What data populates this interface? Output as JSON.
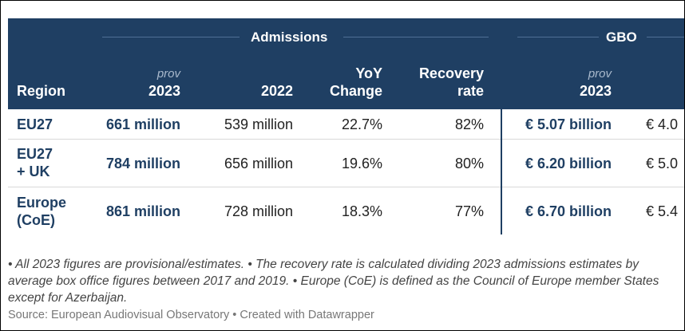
{
  "header": {
    "groups": [
      {
        "label": "Admissions"
      },
      {
        "label": "GBO"
      }
    ],
    "columns": {
      "region": "Region",
      "adm_2023_prov": "prov",
      "adm_2023": "2023",
      "adm_2022": "2022",
      "yoy_line1": "YoY",
      "yoy_line2": "Change",
      "recovery_line1": "Recovery",
      "recovery_line2": "rate",
      "gbo_2023_prov": "prov",
      "gbo_2023": "2023"
    }
  },
  "rows": [
    {
      "region_line1": "EU27",
      "region_line2": "",
      "adm_2023": "661 million",
      "adm_2022": "539 million",
      "yoy": "22.7%",
      "recovery": "82%",
      "gbo_2023": "€ 5.07 billion",
      "gbo_2022": "€ 4.0"
    },
    {
      "region_line1": "EU27",
      "region_line2": "+ UK",
      "adm_2023": "784 million",
      "adm_2022": "656 million",
      "yoy": "19.6%",
      "recovery": "80%",
      "gbo_2023": "€ 6.20 billion",
      "gbo_2022": "€ 5.0"
    },
    {
      "region_line1": "Europe",
      "region_line2": "(CoE)",
      "adm_2023": "861 million",
      "adm_2022": "728 million",
      "yoy": "18.3%",
      "recovery": "77%",
      "gbo_2023": "€ 6.70 billion",
      "gbo_2022": "€ 5.4"
    }
  ],
  "notes": "• All 2023 figures are provisional/estimates. • The recovery rate is calculated dividing 2023 admissions estimates by average box office figures between 2017 and 2019. • Europe (CoE) is defined as the Council of Europe member States except for Azerbaijan.",
  "source": "Source: European Audiovisual Observatory • Created with Datawrapper",
  "colors": {
    "header_bg": "#1f3f63",
    "accent_text": "#1f3f63",
    "prov_text": "#a9b9cc"
  }
}
